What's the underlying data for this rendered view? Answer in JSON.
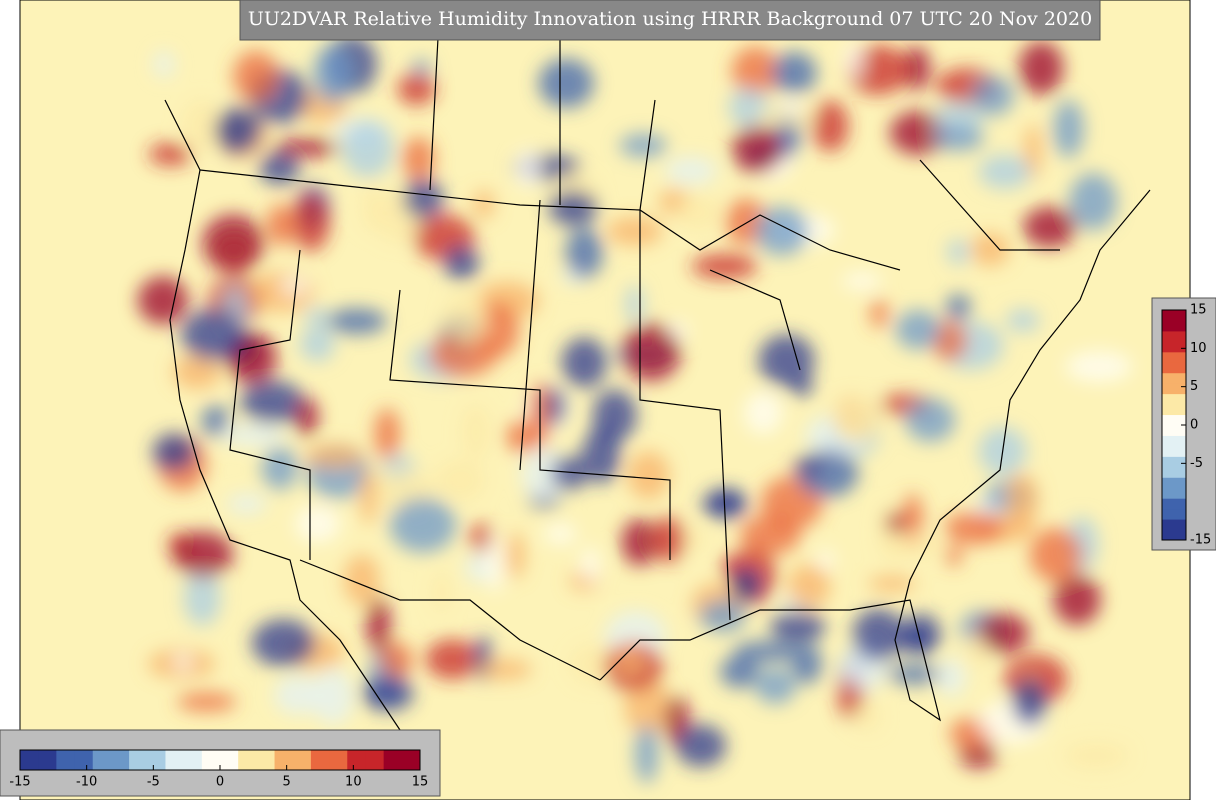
{
  "title": "UU2DVAR Relative Humidity Innovation using HRRR Background 07 UTC 20 Nov 2020",
  "colormap": [
    "#2b3a8f",
    "#3f63ad",
    "#6c98c8",
    "#a9cde3",
    "#e3f1f4",
    "#fffdf5",
    "#fce9a7",
    "#f7b16a",
    "#e9683f",
    "#c7252a",
    "#9a0026"
  ],
  "colorbars": [
    {
      "orientation": "vertical",
      "range": [
        -15,
        15
      ],
      "ticks": [
        15,
        10,
        5,
        0,
        -5,
        -15
      ]
    },
    {
      "orientation": "horizontal",
      "range": [
        -15,
        15
      ],
      "ticks": [
        -15,
        -10,
        -5,
        0,
        5,
        10,
        15
      ]
    }
  ]
}
